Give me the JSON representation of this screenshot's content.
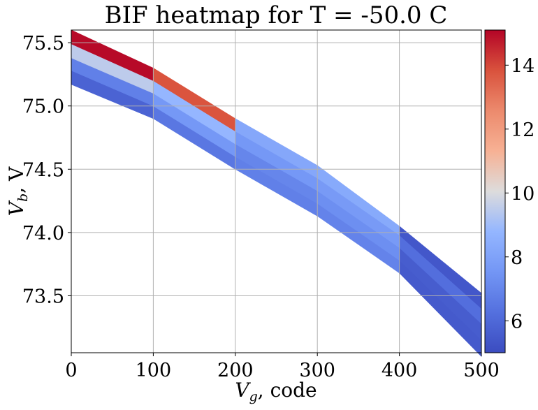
{
  "chart_data": {
    "type": "heatmap",
    "title": "BIF heatmap for T = -50.0 C",
    "xlabel": {
      "var": "V",
      "sub": "g",
      "rest": ", code"
    },
    "ylabel": {
      "var": "V",
      "sub": "b",
      "rest": ", V"
    },
    "xlim": [
      0,
      500
    ],
    "ylim": [
      73.05,
      75.6
    ],
    "x_ticks": [
      0,
      100,
      200,
      300,
      400,
      500
    ],
    "y_ticks": [
      73.5,
      74.0,
      74.5,
      75.0,
      75.5
    ],
    "x_tick_labels": [
      "0",
      "100",
      "200",
      "300",
      "400",
      "500"
    ],
    "y_tick_labels": [
      "73.5",
      "74.0",
      "74.5",
      "75.0",
      "75.5"
    ],
    "grid": true,
    "colormap": "coolwarm",
    "colorbar": {
      "range": [
        5.0,
        15.1
      ],
      "ticks": [
        6,
        8,
        10,
        12,
        14
      ],
      "tick_labels": [
        "6",
        "8",
        "10",
        "12",
        "14"
      ]
    },
    "x": [
      0,
      100,
      200,
      300,
      400,
      500
    ],
    "vb": [
      [
        75.17,
        75.28,
        75.38,
        75.49,
        75.6
      ],
      [
        74.9,
        75.0,
        75.1,
        75.2,
        75.3
      ],
      [
        74.5,
        74.6,
        74.7,
        74.8,
        74.9
      ],
      [
        74.13,
        74.23,
        74.33,
        74.43,
        74.53
      ],
      [
        73.68,
        73.78,
        73.88,
        73.98,
        74.05
      ],
      [
        73.02,
        73.15,
        73.28,
        73.4,
        73.52
      ]
    ],
    "bif": [
      [
        5.8,
        6.8,
        9.5,
        15.0
      ],
      [
        6.5,
        7.6,
        8.8,
        13.8
      ],
      [
        6.8,
        7.0,
        7.6,
        8.2
      ],
      [
        6.9,
        7.3,
        7.7,
        8.3
      ],
      [
        5.5,
        5.6,
        6.2,
        5.4
      ]
    ]
  }
}
